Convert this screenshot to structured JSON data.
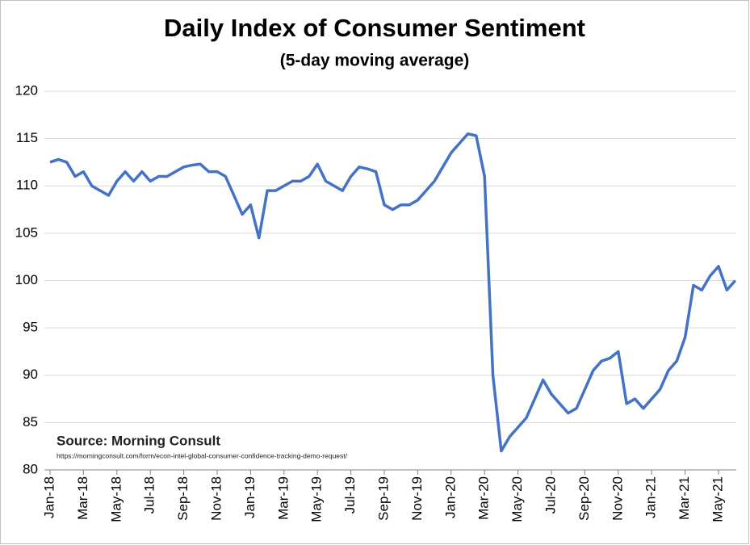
{
  "chart_data": {
    "type": "line",
    "title": "Daily Index of Consumer Sentiment",
    "subtitle": "(5-day moving average)",
    "annotations": [
      "Source: Morning Consult",
      "https://morningconsult.com/form/econ-intel-global-consumer-confidence-tracking-demo-request/"
    ],
    "categories": [
      "Jan-18",
      null,
      null,
      null,
      "Mar-18",
      null,
      null,
      null,
      "May-18",
      null,
      null,
      null,
      "Jul-18",
      null,
      null,
      null,
      "Sep-18",
      null,
      null,
      null,
      "Nov-18",
      null,
      null,
      null,
      "Jan-19",
      null,
      null,
      null,
      "Mar-19",
      null,
      null,
      null,
      "May-19",
      null,
      null,
      null,
      "Jul-19",
      null,
      null,
      null,
      "Sep-19",
      null,
      null,
      null,
      "Nov-19",
      null,
      null,
      null,
      "Jan-20",
      null,
      null,
      null,
      "Mar-20",
      null,
      null,
      null,
      "May-20",
      null,
      null,
      null,
      "Jul-20",
      null,
      null,
      null,
      "Sep-20",
      null,
      null,
      null,
      "Nov-20",
      null,
      null,
      null,
      "Jan-21",
      null,
      null,
      null,
      "Mar-21",
      null,
      null,
      null,
      "May-21",
      null,
      null
    ],
    "series": [
      {
        "name": "Daily Index of Consumer Sentiment",
        "color": "#4472c4",
        "values": [
          112.5,
          112.8,
          112.5,
          111,
          111.5,
          110,
          109.5,
          109,
          110.5,
          111.5,
          110.5,
          111.5,
          110.5,
          111,
          111,
          111.5,
          112,
          112.2,
          112.3,
          111.5,
          111.5,
          111,
          109,
          107,
          108,
          104.5,
          109.5,
          109.5,
          110,
          110.5,
          110.5,
          111,
          112.3,
          110.5,
          110,
          109.5,
          111,
          112,
          111.8,
          111.5,
          108,
          107.5,
          108,
          108,
          108.5,
          109.5,
          110.5,
          112,
          113.5,
          114.5,
          115.5,
          115.3,
          111,
          90,
          82,
          83.5,
          84.5,
          85.5,
          87.5,
          89.5,
          88,
          87,
          86,
          86.5,
          88.5,
          90.5,
          91.5,
          91.8,
          92.5,
          87,
          87.5,
          86.5,
          87.5,
          88.5,
          90.5,
          91.5,
          94,
          99.5,
          99,
          100.5,
          101.5,
          99,
          100
        ]
      }
    ],
    "ylim": [
      80,
      120
    ],
    "yticks": [
      80,
      85,
      90,
      95,
      100,
      105,
      110,
      115,
      120
    ],
    "grid": true
  }
}
